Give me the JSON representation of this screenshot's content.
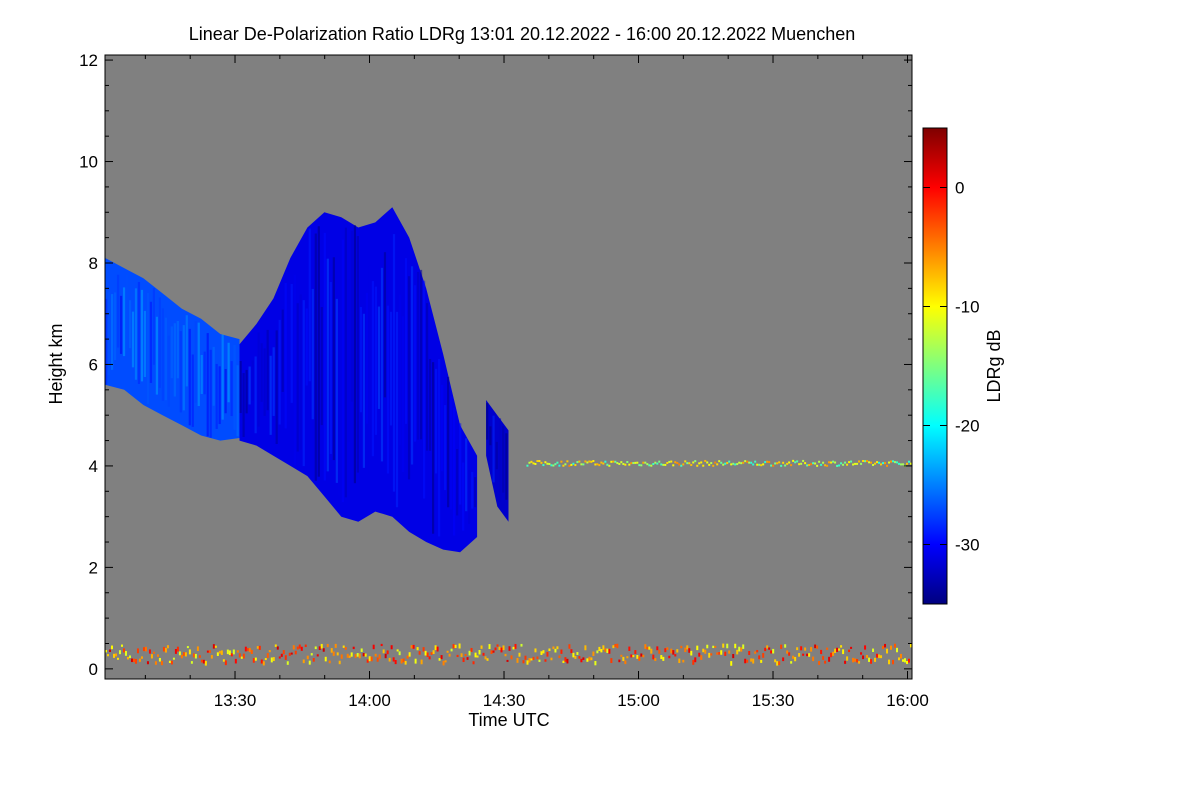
{
  "chart_data": {
    "type": "heatmap",
    "title": "Linear De-Polarization Ratio LDRg   13:01 20.12.2022 - 16:00 20.12.2022 Muenchen",
    "xlabel": "Time UTC",
    "ylabel": "Height km",
    "x_range_minutes_utc": [
      781,
      961
    ],
    "x_ticks": [
      {
        "minute": 810,
        "label": "13:30"
      },
      {
        "minute": 840,
        "label": "14:00"
      },
      {
        "minute": 870,
        "label": "14:30"
      },
      {
        "minute": 900,
        "label": "15:00"
      },
      {
        "minute": 930,
        "label": "15:30"
      },
      {
        "minute": 960,
        "label": "16:00"
      }
    ],
    "ylim": [
      -0.2,
      12.1
    ],
    "y_ticks": [
      0,
      2,
      4,
      6,
      8,
      10,
      12
    ],
    "background_color": "#808080",
    "colorbar": {
      "label": "LDRg dB",
      "range": [
        -35,
        5
      ],
      "ticks": [
        0,
        -10,
        -20,
        -30
      ],
      "colors": [
        "#00007f",
        "#0000ff",
        "#007fff",
        "#00ffff",
        "#7fff7f",
        "#ffff00",
        "#ff7f00",
        "#ff0000",
        "#7f0000"
      ]
    },
    "features": [
      {
        "name": "cirrus-band-left",
        "time_start": 781,
        "time_end": 811,
        "height_top": [
          8.1,
          7.9,
          7.7,
          7.4,
          7.1,
          6.9,
          6.6,
          6.5
        ],
        "height_bottom": [
          5.6,
          5.5,
          5.2,
          5.0,
          4.8,
          4.6,
          4.5,
          4.55
        ],
        "ldr_db": -27
      },
      {
        "name": "fall-streak-cloud",
        "time_start": 811,
        "time_end": 864,
        "height_top": [
          6.4,
          6.8,
          7.3,
          8.1,
          8.7,
          9.0,
          8.9,
          8.7,
          8.8,
          9.1,
          8.5,
          7.5,
          6.2,
          4.8,
          4.2
        ],
        "height_bottom": [
          4.5,
          4.4,
          4.2,
          4.0,
          3.8,
          3.4,
          3.0,
          2.9,
          3.1,
          3.0,
          2.7,
          2.5,
          2.35,
          2.3,
          2.6
        ],
        "ldr_db": -31
      },
      {
        "name": "virga-right",
        "time_start": 866,
        "time_end": 871,
        "height_top": [
          5.3,
          5.0,
          4.7
        ],
        "height_bottom": [
          4.2,
          3.2,
          2.9
        ],
        "ldr_db": -32
      },
      {
        "name": "melting-layer-line",
        "time_start": 875,
        "time_end": 961,
        "height": 4.05,
        "ldr_db": -12
      },
      {
        "name": "boundary-layer-noise",
        "time_start": 781,
        "time_end": 961,
        "height": 0.25,
        "ldr_db": -5
      }
    ]
  }
}
